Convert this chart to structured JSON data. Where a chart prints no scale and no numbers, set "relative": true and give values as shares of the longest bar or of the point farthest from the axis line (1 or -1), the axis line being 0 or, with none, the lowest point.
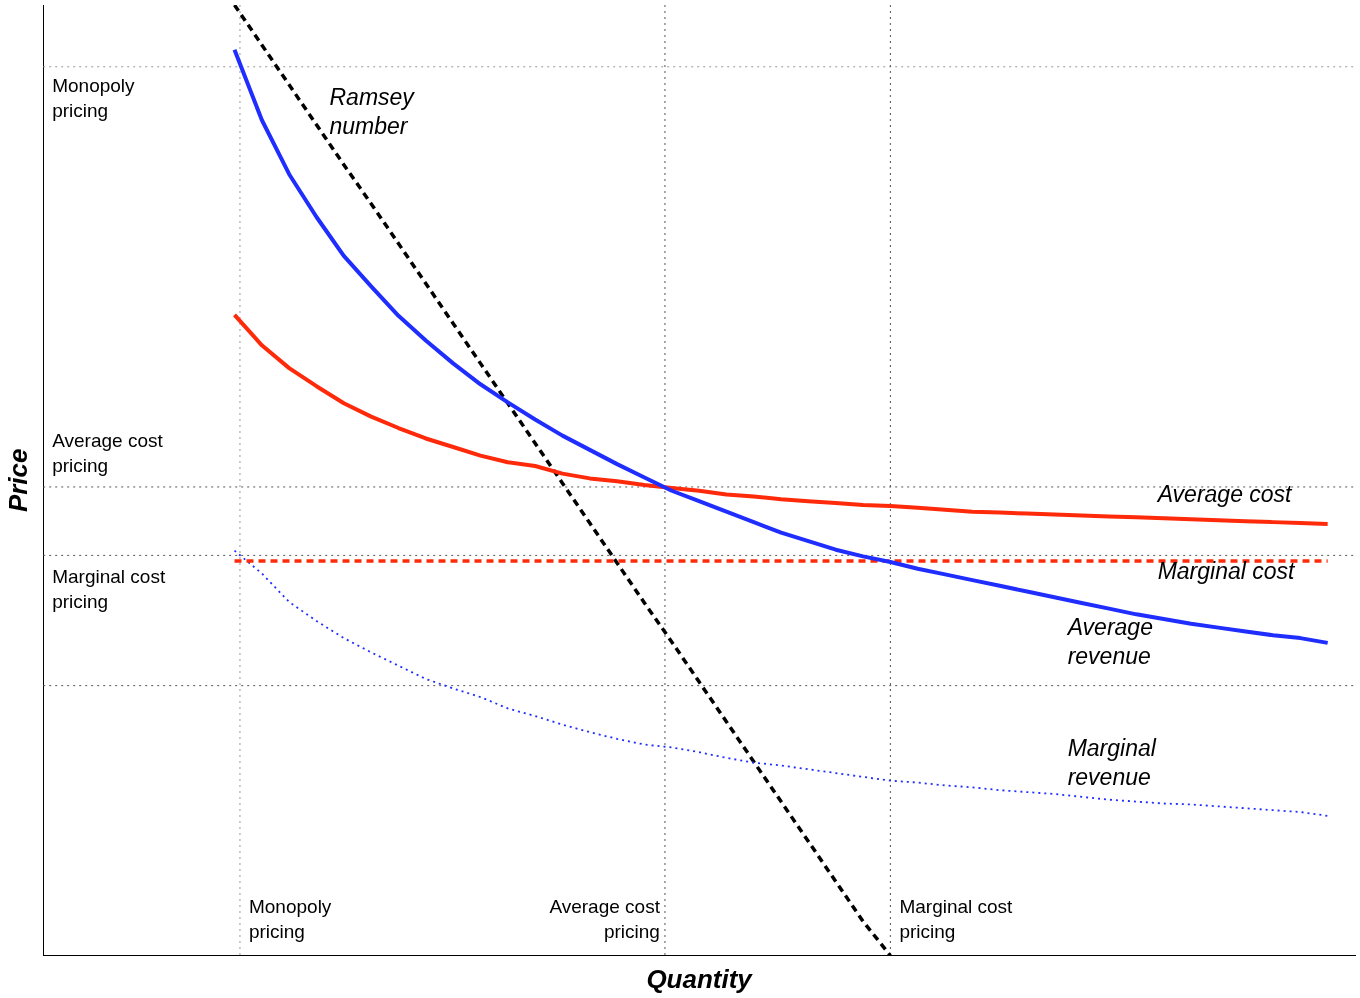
{
  "chart_data": {
    "type": "line",
    "relative": true,
    "xlabel": "Quantity",
    "ylabel": "Price",
    "categories": [
      null,
      null,
      null,
      null,
      null,
      null,
      null,
      null,
      null,
      null,
      null,
      null,
      null,
      null,
      null,
      null,
      null,
      null,
      null,
      null,
      null,
      null,
      null,
      null,
      null,
      null,
      null,
      null,
      null,
      null,
      null,
      null,
      null,
      null,
      null,
      null,
      null,
      null,
      null,
      null,
      null,
      null,
      null,
      null,
      null,
      null,
      null,
      null,
      null
    ],
    "series": [
      {
        "name": "Average revenue",
        "color": "#1f2eff",
        "line_style": "solid",
        "values": [
          null,
          null,
          null,
          null,
          null,
          null,
          null,
          0.953,
          0.879,
          0.822,
          0.777,
          0.736,
          0.704,
          0.673,
          0.647,
          0.623,
          0.601,
          0.582,
          0.564,
          0.547,
          0.532,
          0.517,
          0.503,
          0.489,
          0.478,
          0.467,
          0.456,
          0.445,
          0.436,
          0.427,
          0.42,
          0.414,
          0.407,
          0.401,
          0.395,
          0.389,
          0.383,
          0.377,
          0.371,
          0.365,
          0.359,
          0.354,
          0.349,
          0.345,
          0.341,
          0.337,
          0.334,
          0.329,
          null
        ]
      },
      {
        "name": "Average cost",
        "color": "#ff2a0a",
        "line_style": "solid",
        "values": [
          null,
          null,
          null,
          null,
          null,
          null,
          null,
          0.674,
          0.642,
          0.618,
          0.599,
          0.581,
          0.567,
          0.555,
          0.544,
          0.535,
          0.526,
          0.519,
          0.515,
          0.507,
          0.502,
          0.499,
          0.495,
          0.492,
          0.489,
          0.485,
          0.483,
          0.48,
          0.478,
          0.476,
          0.474,
          0.473,
          0.471,
          0.469,
          0.467,
          0.466,
          0.465,
          0.464,
          0.463,
          0.462,
          0.461,
          0.46,
          0.459,
          0.458,
          0.457,
          0.456,
          0.455,
          0.454,
          null
        ]
      },
      {
        "name": "Marginal cost",
        "color": "#ff2a0a",
        "line_style": "dashed",
        "values": [
          null,
          null,
          null,
          null,
          null,
          null,
          null,
          0.415,
          0.415,
          0.415,
          0.415,
          0.415,
          0.415,
          0.415,
          0.415,
          0.415,
          0.415,
          0.415,
          0.415,
          0.415,
          0.415,
          0.415,
          0.415,
          0.415,
          0.415,
          0.415,
          0.415,
          0.415,
          0.415,
          0.415,
          0.415,
          0.415,
          0.415,
          0.415,
          0.415,
          0.415,
          0.415,
          0.415,
          0.415,
          0.415,
          0.415,
          0.415,
          0.415,
          0.415,
          0.415,
          0.415,
          0.415,
          0.415,
          null
        ]
      },
      {
        "name": "Marginal revenue",
        "color": "#1f2eff",
        "line_style": "dotted",
        "values": [
          null,
          null,
          null,
          null,
          null,
          null,
          null,
          0.426,
          0.402,
          0.372,
          0.352,
          0.334,
          0.319,
          0.305,
          0.291,
          0.281,
          0.272,
          0.26,
          0.252,
          0.243,
          0.235,
          0.228,
          0.222,
          0.219,
          0.214,
          0.208,
          0.203,
          0.2,
          0.196,
          0.192,
          0.188,
          0.184,
          0.182,
          0.179,
          0.177,
          0.174,
          0.172,
          0.17,
          0.167,
          0.164,
          0.162,
          0.16,
          0.159,
          0.157,
          0.155,
          0.153,
          0.151,
          0.147,
          null
        ]
      },
      {
        "name": "Ramsey number",
        "color": "#000000",
        "line_style": "dashed",
        "values": [
          null,
          null,
          null,
          null,
          null,
          null,
          null,
          1,
          0.958,
          0.916,
          0.874,
          0.832,
          0.791,
          0.749,
          0.707,
          0.665,
          0.623,
          0.581,
          0.539,
          0.497,
          0.455,
          0.413,
          0.371,
          0.33,
          0.288,
          0.246,
          0.204,
          0.162,
          0.12,
          0.078,
          0.036,
          0,
          null,
          null,
          null,
          null,
          null,
          null,
          null,
          null,
          null,
          null,
          null,
          null,
          null,
          null,
          null,
          null,
          null
        ]
      }
    ],
    "ref_lines": [
      {
        "axis": "y",
        "value": 0.935,
        "label": "Monopoly pricing",
        "color": "#999999",
        "line_style": "dotted"
      },
      {
        "axis": "y",
        "value": 0.493,
        "label": "Average cost pricing",
        "color": "#555555",
        "line_style": "dotted"
      },
      {
        "axis": "y",
        "value": 0.421,
        "label": "Marginal cost pricing",
        "color": "#555555",
        "line_style": "dotted"
      },
      {
        "axis": "y",
        "value": 0.284,
        "color": "#555555",
        "line_style": "dotted"
      }
    ],
    "annotations": [
      "Monopoly pricing",
      "Average cost pricing",
      "Marginal cost pricing"
    ]
  }
}
